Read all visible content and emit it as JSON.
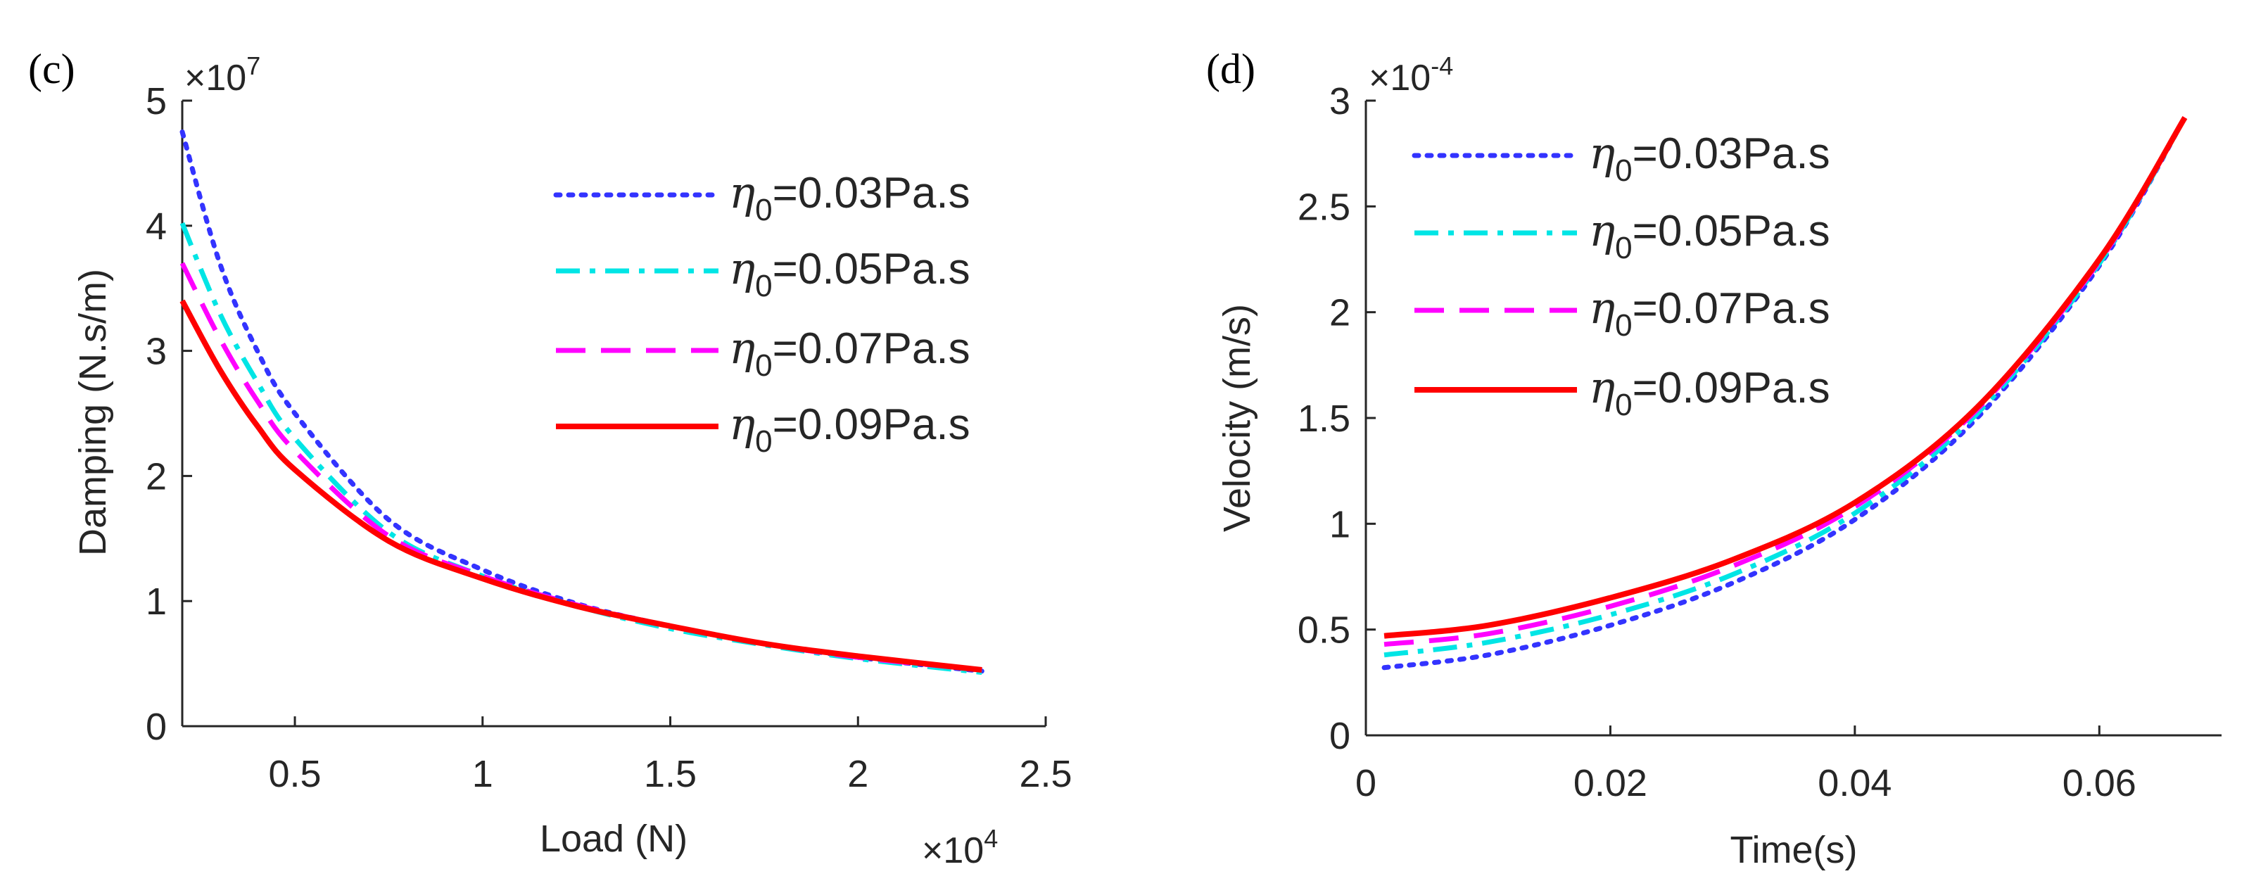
{
  "chart_data": [
    {
      "type": "line",
      "panel_label": "(c)",
      "xlabel": "Load (N)",
      "ylabel": "Damping (N.s/m)",
      "x_exponent_label": "×10",
      "x_exponent": "4",
      "y_exponent_label": "×10",
      "y_exponent": "7",
      "xlim": [
        0.2,
        2.5
      ],
      "ylim": [
        0,
        5
      ],
      "xticks": [
        0.5,
        1,
        1.5,
        2,
        2.5
      ],
      "xtick_labels": [
        "0.5",
        "1",
        "1.5",
        "2",
        "2.5"
      ],
      "yticks": [
        0,
        1,
        2,
        3,
        4,
        5
      ],
      "ytick_labels": [
        "0",
        "1",
        "2",
        "3",
        "4",
        "5"
      ],
      "grid": false,
      "legend_position": "top-right",
      "x": [
        0.2,
        0.3,
        0.4,
        0.5,
        0.75,
        1.0,
        1.25,
        1.5,
        1.75,
        2.0,
        2.33
      ],
      "series": [
        {
          "name": "η0=0.03Pa.s",
          "symbol": "η",
          "sub": "0",
          "rest": "=0.03Pa.s",
          "color": "#3333ff",
          "style": "dotted",
          "values": [
            4.75,
            3.7,
            3.0,
            2.5,
            1.65,
            1.25,
            0.98,
            0.8,
            0.66,
            0.55,
            0.44
          ]
        },
        {
          "name": "η0=0.05Pa.s",
          "symbol": "η",
          "sub": "0",
          "rest": "=0.05Pa.s",
          "color": "#00e5e5",
          "style": "dashdot",
          "values": [
            4.02,
            3.3,
            2.75,
            2.3,
            1.55,
            1.2,
            0.96,
            0.78,
            0.65,
            0.54,
            0.43
          ]
        },
        {
          "name": "η0=0.07Pa.s",
          "symbol": "η",
          "sub": "0",
          "rest": "=0.07Pa.s",
          "color": "#ff00ff",
          "style": "dashed",
          "values": [
            3.7,
            3.1,
            2.6,
            2.2,
            1.52,
            1.2,
            0.97,
            0.8,
            0.66,
            0.55,
            0.45
          ]
        },
        {
          "name": "η0=0.09Pa.s",
          "symbol": "η",
          "sub": "0",
          "rest": "=0.09Pa.s",
          "color": "#ff0000",
          "style": "solid",
          "values": [
            3.4,
            2.85,
            2.4,
            2.05,
            1.48,
            1.18,
            0.96,
            0.8,
            0.66,
            0.56,
            0.45
          ]
        }
      ]
    },
    {
      "type": "line",
      "panel_label": "(d)",
      "xlabel": "Time(s)",
      "ylabel": "Velocity (m/s)",
      "y_exponent_label": "×10",
      "y_exponent": "-4",
      "xlim": [
        0,
        0.07
      ],
      "ylim": [
        0,
        3
      ],
      "xticks": [
        0,
        0.02,
        0.04,
        0.06
      ],
      "xtick_labels": [
        "0",
        "0.02",
        "0.04",
        "0.06"
      ],
      "yticks": [
        0,
        0.5,
        1,
        1.5,
        2,
        2.5,
        3
      ],
      "ytick_labels": [
        "0",
        "0.5",
        "1",
        "1.5",
        "2",
        "2.5",
        "3"
      ],
      "grid": false,
      "legend_position": "top-left",
      "x": [
        0.0015,
        0.01,
        0.02,
        0.03,
        0.04,
        0.05,
        0.06,
        0.067
      ],
      "series": [
        {
          "name": "η0=0.03Pa.s",
          "symbol": "η",
          "sub": "0",
          "rest": "=0.03Pa.s",
          "color": "#3333ff",
          "style": "dotted",
          "values": [
            0.32,
            0.38,
            0.52,
            0.72,
            1.02,
            1.5,
            2.22,
            2.92
          ]
        },
        {
          "name": "η0=0.05Pa.s",
          "symbol": "η",
          "sub": "0",
          "rest": "=0.05Pa.s",
          "color": "#00e5e5",
          "style": "dashdot",
          "values": [
            0.38,
            0.44,
            0.57,
            0.76,
            1.05,
            1.52,
            2.23,
            2.92
          ]
        },
        {
          "name": "η0=0.07Pa.s",
          "symbol": "η",
          "sub": "0",
          "rest": "=0.07Pa.s",
          "color": "#ff00ff",
          "style": "dashed",
          "values": [
            0.43,
            0.48,
            0.61,
            0.8,
            1.08,
            1.54,
            2.24,
            2.92
          ]
        },
        {
          "name": "η0=0.09Pa.s",
          "symbol": "η",
          "sub": "0",
          "rest": "=0.09Pa.s",
          "color": "#ff0000",
          "style": "solid",
          "values": [
            0.47,
            0.52,
            0.65,
            0.83,
            1.1,
            1.55,
            2.25,
            2.92
          ]
        }
      ]
    }
  ]
}
